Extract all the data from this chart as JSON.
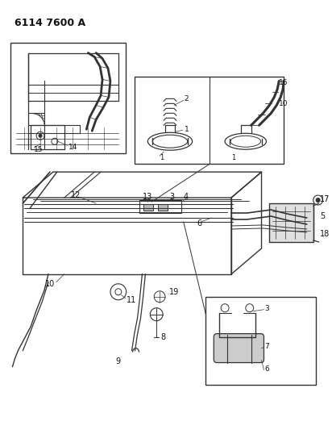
{
  "title": "6114 7600 A",
  "bg_color": "#ffffff",
  "line_color": "#333333",
  "text_color": "#111111",
  "title_fontsize": 9,
  "label_fontsize": 7,
  "fig_width": 4.12,
  "fig_height": 5.33,
  "dpi": 100
}
